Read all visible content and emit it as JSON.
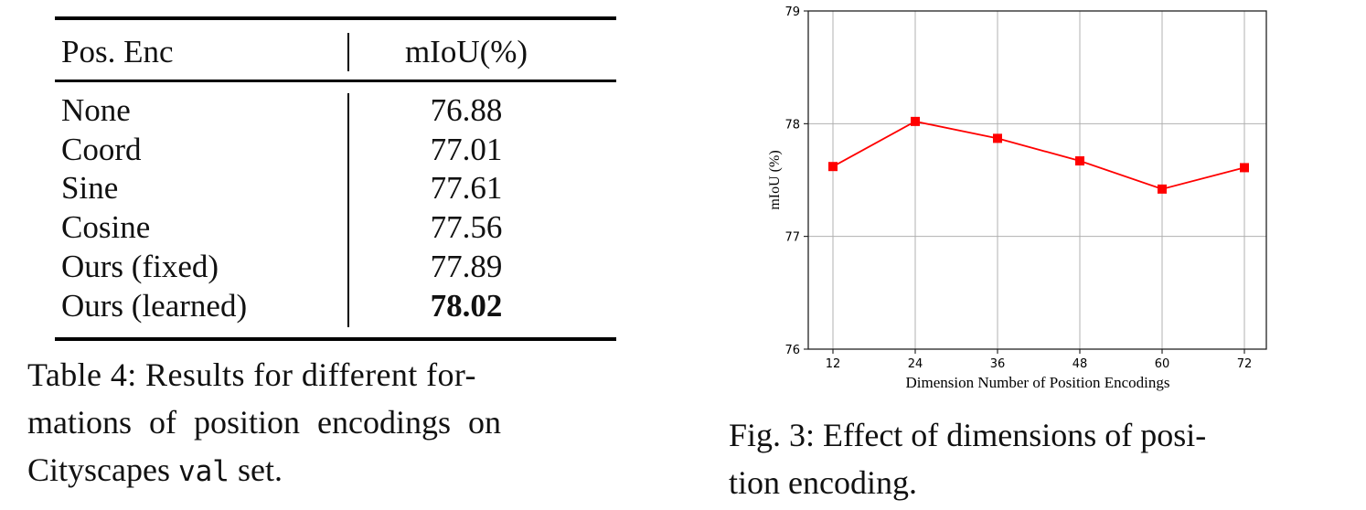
{
  "table": {
    "headers": [
      "Pos. Enc",
      "mIoU(%)"
    ],
    "rows": [
      {
        "method": "None",
        "miou": "76.88"
      },
      {
        "method": "Coord",
        "miou": "77.01"
      },
      {
        "method": "Sine",
        "miou": "77.61"
      },
      {
        "method": "Cosine",
        "miou": "77.56"
      },
      {
        "method": "Ours (fixed)",
        "miou": "77.89"
      },
      {
        "method": "Ours (learned)",
        "miou": "78.02",
        "bold": true
      }
    ],
    "caption_line1": "Table 4: Results for different for-",
    "caption_line2": "mations of position encodings on",
    "caption_line3_a": "Cityscapes ",
    "caption_line3_code": "val",
    "caption_line3_b": " set."
  },
  "figure": {
    "caption_line1": "Fig. 3: Effect of dimensions of posi-",
    "caption_line2": "tion encoding."
  },
  "chart_data": {
    "type": "line",
    "x": [
      12,
      24,
      36,
      48,
      60,
      72
    ],
    "series": [
      {
        "values": [
          77.62,
          78.02,
          77.87,
          77.67,
          77.42,
          77.61
        ],
        "color": "#ff0000",
        "marker": "square"
      }
    ],
    "xlabel": "Dimension Number of Position Encodings",
    "ylabel": "mIoU (%)",
    "xticks": [
      "12",
      "24",
      "36",
      "48",
      "60",
      "72"
    ],
    "yticks": [
      "76",
      "77",
      "78",
      "79"
    ],
    "ylim": [
      76,
      79
    ],
    "xlim": [
      8.4,
      75.2
    ],
    "grid": true
  }
}
